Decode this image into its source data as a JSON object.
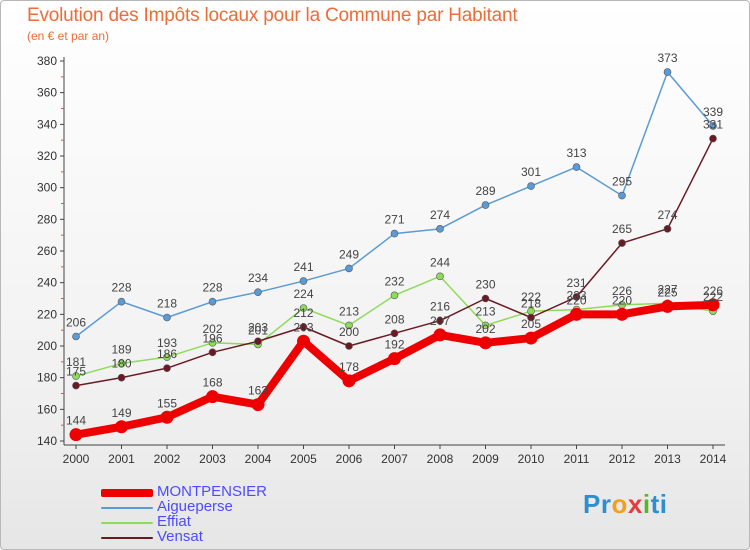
{
  "title": "Evolution des Impôts locaux pour la Commune par Habitant",
  "subtitle": "(en € et par an)",
  "logo": {
    "p1": "Pr",
    "p2": "o",
    "p3": "x",
    "p4": "i",
    "p5": "ti"
  },
  "chart_data": {
    "type": "line",
    "title": "Evolution des Impôts locaux pour la Commune par Habitant",
    "subtitle": "(en € et par an)",
    "xlabel": "",
    "ylabel": "",
    "x": [
      "2000",
      "2001",
      "2002",
      "2003",
      "2004",
      "2005",
      "2006",
      "2007",
      "2008",
      "2009",
      "2010",
      "2011",
      "2012",
      "2013",
      "2014"
    ],
    "ylim": [
      140,
      380
    ],
    "yticks": [
      140,
      160,
      180,
      200,
      220,
      240,
      260,
      280,
      300,
      320,
      340,
      360,
      380
    ],
    "grid": false,
    "legend_position": "bottom-left",
    "series": [
      {
        "name": "MONTPENSIER",
        "color": "#ee0000",
        "values": [
          144,
          149,
          155,
          168,
          163,
          203,
          178,
          192,
          207,
          202,
          205,
          220,
          220,
          225,
          226
        ]
      },
      {
        "name": "Aigueperse",
        "color": "#5b9bd5",
        "values": [
          206,
          228,
          218,
          228,
          234,
          241,
          249,
          271,
          274,
          289,
          301,
          313,
          295,
          373,
          339
        ]
      },
      {
        "name": "Effiat",
        "color": "#8edb5a",
        "values": [
          181,
          189,
          193,
          202,
          201,
          224,
          213,
          232,
          244,
          213,
          222,
          223,
          226,
          227,
          222
        ]
      },
      {
        "name": "Vensat",
        "color": "#6b1a24",
        "values": [
          175,
          180,
          186,
          196,
          203,
          212,
          200,
          208,
          216,
          230,
          218,
          231,
          265,
          274,
          331
        ]
      }
    ]
  }
}
